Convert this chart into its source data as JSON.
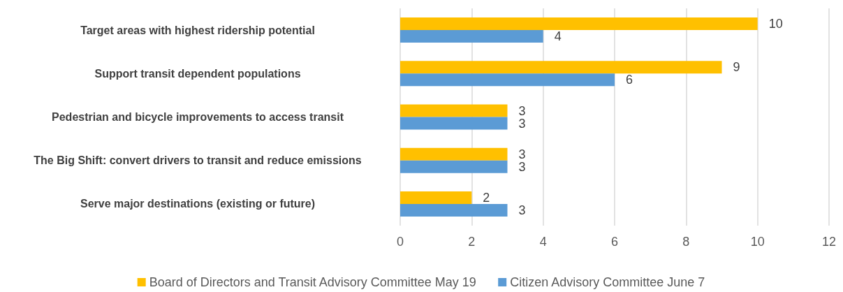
{
  "chart_data": {
    "type": "bar",
    "orientation": "horizontal",
    "categories": [
      "Target areas with highest ridership potential",
      "Support transit dependent populations",
      "Pedestrian and bicycle improvements to access transit",
      "The Big Shift: convert drivers to transit and reduce emissions",
      "Serve major destinations (existing or future)"
    ],
    "series": [
      {
        "name": "Board of Directors and Transit Advisory Committee May 19",
        "color": "#ffc000",
        "values": [
          10,
          9,
          3,
          3,
          2
        ]
      },
      {
        "name": "Citizen Advisory Committee June 7",
        "color": "#5b9bd5",
        "values": [
          4,
          6,
          3,
          3,
          3
        ]
      }
    ],
    "xlim": [
      0,
      12
    ],
    "xticks": [
      0,
      2,
      4,
      6,
      8,
      10,
      12
    ],
    "grid": "x",
    "legend": "bottom",
    "data_labels": true
  }
}
